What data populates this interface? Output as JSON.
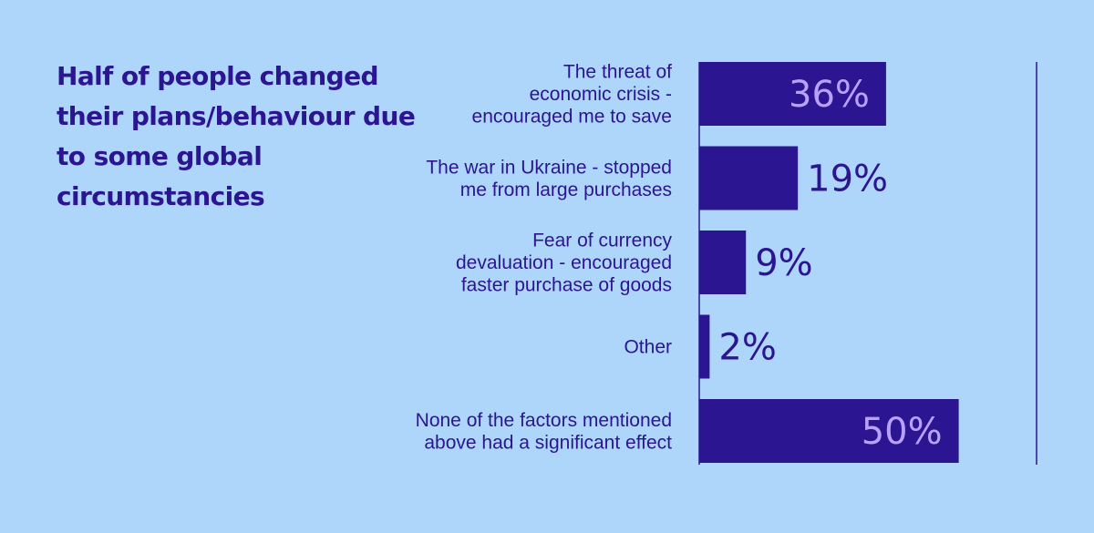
{
  "chart_data": {
    "type": "bar",
    "orientation": "horizontal",
    "title": "Half of people changed their plans/behaviour due to some global circumstancies",
    "categories": [
      [
        "The threat of",
        "economic crisis -",
        "encouraged me to save"
      ],
      [
        "The war in Ukraine - stopped",
        "me from large purchases"
      ],
      [
        "Fear of currency",
        "devaluation - encouraged",
        "faster purchase of goods"
      ],
      [
        "Other"
      ],
      [
        "None of the factors mentioned",
        "above had a significant effect"
      ]
    ],
    "values": [
      36,
      19,
      9,
      2,
      50
    ],
    "value_labels": [
      "36%",
      "19%",
      "9%",
      "2%",
      "50%"
    ],
    "xlim": [
      0,
      65
    ],
    "unit": "%",
    "grid": false
  },
  "colors": {
    "background": "#aed6fb",
    "bar": "#2c1591",
    "value_inside": "#b8a2ff",
    "value_outside": "#2c1591",
    "text": "#2c1591"
  }
}
